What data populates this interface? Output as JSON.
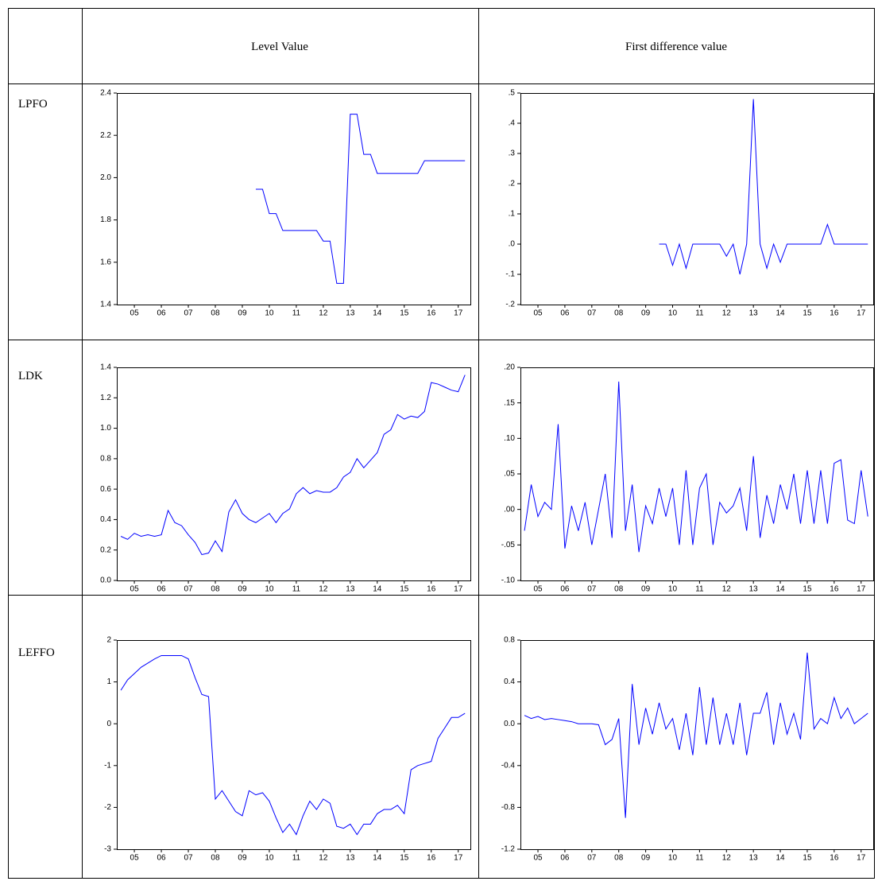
{
  "table": {
    "headers": [
      "Level Value",
      "First difference value"
    ],
    "row_labels": [
      "LPFO",
      "LDK",
      "LEFFO"
    ]
  },
  "chart_data": [
    {
      "type": "line",
      "color": "#0000ff",
      "x": [
        5,
        5.25,
        5.5,
        5.75,
        6,
        6.25,
        6.5,
        6.75,
        7,
        7.25,
        7.5,
        7.75,
        8,
        8.25,
        8.5,
        8.75,
        9,
        9.25,
        9.5,
        9.75,
        10,
        10.25,
        10.5,
        10.75,
        11,
        11.25,
        11.5,
        11.75,
        12,
        12.25,
        12.5,
        12.75,
        13,
        13.25,
        13.5,
        13.75,
        14,
        14.25,
        14.5,
        14.75,
        15,
        15.25,
        15.5,
        15.75,
        16,
        16.25,
        16.5,
        16.75,
        17,
        17.25,
        17.5,
        17.75
      ],
      "values": [
        null,
        null,
        null,
        null,
        null,
        null,
        null,
        null,
        null,
        null,
        null,
        null,
        null,
        null,
        null,
        null,
        null,
        null,
        null,
        null,
        1.945,
        1.945,
        1.83,
        1.83,
        1.75,
        1.75,
        1.75,
        1.75,
        1.75,
        1.75,
        1.7,
        1.7,
        1.5,
        1.5,
        2.3,
        2.3,
        2.11,
        2.11,
        2.02,
        2.02,
        2.02,
        2.02,
        2.02,
        2.02,
        2.02,
        2.08,
        2.08,
        2.08,
        2.08,
        2.08,
        2.08,
        2.08
      ],
      "xlim": [
        4.85,
        17.95
      ],
      "ylim": [
        1.4,
        2.4
      ],
      "yticks": [
        1.4,
        1.6,
        1.8,
        {
          "value": 2,
          "label": "2.0"
        },
        2.2,
        2.4
      ],
      "xticks": [
        {
          "value": 5.5,
          "label": "05"
        },
        {
          "value": 6.5,
          "label": "06"
        },
        {
          "value": 7.5,
          "label": "07"
        },
        {
          "value": 8.5,
          "label": "08"
        },
        {
          "value": 9.5,
          "label": "09"
        },
        {
          "value": 10.5,
          "label": "10"
        },
        {
          "value": 11.5,
          "label": "11"
        },
        {
          "value": 12.5,
          "label": "12"
        },
        {
          "value": 13.5,
          "label": "13"
        },
        {
          "value": 14.5,
          "label": "14"
        },
        {
          "value": 15.5,
          "label": "15"
        },
        {
          "value": 16.5,
          "label": "16"
        },
        {
          "value": 17.5,
          "label": "17"
        }
      ]
    },
    {
      "type": "line",
      "color": "#0000ff",
      "x": [
        5,
        5.25,
        5.5,
        5.75,
        6,
        6.25,
        6.5,
        6.75,
        7,
        7.25,
        7.5,
        7.75,
        8,
        8.25,
        8.5,
        8.75,
        9,
        9.25,
        9.5,
        9.75,
        10,
        10.25,
        10.5,
        10.75,
        11,
        11.25,
        11.5,
        11.75,
        12,
        12.25,
        12.5,
        12.75,
        13,
        13.25,
        13.5,
        13.75,
        14,
        14.25,
        14.5,
        14.75,
        15,
        15.25,
        15.5,
        15.75,
        16,
        16.25,
        16.5,
        16.75,
        17,
        17.25,
        17.5,
        17.75
      ],
      "values": [
        null,
        null,
        null,
        null,
        null,
        null,
        null,
        null,
        null,
        null,
        null,
        null,
        null,
        null,
        null,
        null,
        null,
        null,
        null,
        null,
        0,
        0,
        -0.07,
        0,
        -0.08,
        0,
        0,
        0,
        0,
        0,
        -0.04,
        0,
        -0.1,
        0,
        0.48,
        0,
        -0.08,
        0,
        -0.06,
        0,
        0,
        0,
        0,
        0,
        0,
        0.065,
        0,
        0,
        0,
        0,
        0,
        0
      ],
      "xlim": [
        4.85,
        17.95
      ],
      "ylim": [
        -0.2,
        0.5
      ],
      "yticks": [
        {
          "value": -0.2,
          "label": "-.2"
        },
        {
          "value": -0.1,
          "label": "-.1"
        },
        {
          "value": 0,
          "label": ".0"
        },
        {
          "value": 0.1,
          "label": ".1"
        },
        {
          "value": 0.2,
          "label": ".2"
        },
        {
          "value": 0.3,
          "label": ".3"
        },
        {
          "value": 0.4,
          "label": ".4"
        },
        {
          "value": 0.5,
          "label": ".5"
        }
      ],
      "xticks": [
        {
          "value": 5.5,
          "label": "05"
        },
        {
          "value": 6.5,
          "label": "06"
        },
        {
          "value": 7.5,
          "label": "07"
        },
        {
          "value": 8.5,
          "label": "08"
        },
        {
          "value": 9.5,
          "label": "09"
        },
        {
          "value": 10.5,
          "label": "10"
        },
        {
          "value": 11.5,
          "label": "11"
        },
        {
          "value": 12.5,
          "label": "12"
        },
        {
          "value": 13.5,
          "label": "13"
        },
        {
          "value": 14.5,
          "label": "14"
        },
        {
          "value": 15.5,
          "label": "15"
        },
        {
          "value": 16.5,
          "label": "16"
        },
        {
          "value": 17.5,
          "label": "17"
        }
      ]
    },
    {
      "type": "line",
      "color": "#0000ff",
      "x": [
        5,
        5.25,
        5.5,
        5.75,
        6,
        6.25,
        6.5,
        6.75,
        7,
        7.25,
        7.5,
        7.75,
        8,
        8.25,
        8.5,
        8.75,
        9,
        9.25,
        9.5,
        9.75,
        10,
        10.25,
        10.5,
        10.75,
        11,
        11.25,
        11.5,
        11.75,
        12,
        12.25,
        12.5,
        12.75,
        13,
        13.25,
        13.5,
        13.75,
        14,
        14.25,
        14.5,
        14.75,
        15,
        15.25,
        15.5,
        15.75,
        16,
        16.25,
        16.5,
        16.75,
        17,
        17.25,
        17.5,
        17.75
      ],
      "values": [
        0.29,
        0.27,
        0.31,
        0.29,
        0.3,
        0.29,
        0.3,
        0.46,
        0.38,
        0.36,
        0.3,
        0.25,
        0.17,
        0.18,
        0.26,
        0.19,
        0.45,
        0.53,
        0.44,
        0.4,
        0.38,
        0.41,
        0.44,
        0.38,
        0.44,
        0.47,
        0.57,
        0.61,
        0.57,
        0.59,
        0.58,
        0.58,
        0.61,
        0.68,
        0.71,
        0.8,
        0.74,
        0.79,
        0.84,
        0.96,
        0.99,
        1.09,
        1.06,
        1.08,
        1.07,
        1.11,
        1.3,
        1.29,
        1.27,
        1.25,
        1.24,
        1.35
      ],
      "xlim": [
        4.85,
        17.95
      ],
      "ylim": [
        0,
        1.4
      ],
      "yticks": [
        {
          "value": 0,
          "label": "0.0"
        },
        0.2,
        0.4,
        0.6,
        0.8,
        {
          "value": 1,
          "label": "1.0"
        },
        1.2,
        1.4
      ],
      "xticks": [
        {
          "value": 5.5,
          "label": "05"
        },
        {
          "value": 6.5,
          "label": "06"
        },
        {
          "value": 7.5,
          "label": "07"
        },
        {
          "value": 8.5,
          "label": "08"
        },
        {
          "value": 9.5,
          "label": "09"
        },
        {
          "value": 10.5,
          "label": "10"
        },
        {
          "value": 11.5,
          "label": "11"
        },
        {
          "value": 12.5,
          "label": "12"
        },
        {
          "value": 13.5,
          "label": "13"
        },
        {
          "value": 14.5,
          "label": "14"
        },
        {
          "value": 15.5,
          "label": "15"
        },
        {
          "value": 16.5,
          "label": "16"
        },
        {
          "value": 17.5,
          "label": "17"
        }
      ]
    },
    {
      "type": "line",
      "color": "#0000ff",
      "x": [
        5,
        5.25,
        5.5,
        5.75,
        6,
        6.25,
        6.5,
        6.75,
        7,
        7.25,
        7.5,
        7.75,
        8,
        8.25,
        8.5,
        8.75,
        9,
        9.25,
        9.5,
        9.75,
        10,
        10.25,
        10.5,
        10.75,
        11,
        11.25,
        11.5,
        11.75,
        12,
        12.25,
        12.5,
        12.75,
        13,
        13.25,
        13.5,
        13.75,
        14,
        14.25,
        14.5,
        14.75,
        15,
        15.25,
        15.5,
        15.75,
        16,
        16.25,
        16.5,
        16.75,
        17,
        17.25,
        17.5,
        17.75
      ],
      "values": [
        -0.03,
        0.035,
        -0.01,
        0.01,
        0,
        0.12,
        -0.055,
        0.005,
        -0.03,
        0.01,
        -0.05,
        0,
        0.05,
        -0.04,
        0.18,
        -0.03,
        0.035,
        -0.06,
        0.005,
        -0.02,
        0.03,
        -0.01,
        0.03,
        -0.05,
        0.055,
        -0.05,
        0.03,
        0.05,
        -0.05,
        0.01,
        -0.005,
        0.005,
        0.03,
        -0.03,
        0.075,
        -0.04,
        0.02,
        -0.02,
        0.035,
        0,
        0.05,
        -0.02,
        0.055,
        -0.02,
        0.055,
        -0.02,
        0.065,
        0.07,
        -0.015,
        -0.02,
        0.055,
        -0.01
      ],
      "xlim": [
        4.85,
        17.95
      ],
      "ylim": [
        -0.1,
        0.2
      ],
      "yticks": [
        {
          "value": -0.1,
          "label": "-.10"
        },
        {
          "value": -0.05,
          "label": "-.05"
        },
        {
          "value": 0,
          "label": ".00"
        },
        {
          "value": 0.05,
          "label": ".05"
        },
        {
          "value": 0.1,
          "label": ".10"
        },
        {
          "value": 0.15,
          "label": ".15"
        },
        {
          "value": 0.2,
          "label": ".20"
        }
      ],
      "xticks": [
        {
          "value": 5.5,
          "label": "05"
        },
        {
          "value": 6.5,
          "label": "06"
        },
        {
          "value": 7.5,
          "label": "07"
        },
        {
          "value": 8.5,
          "label": "08"
        },
        {
          "value": 9.5,
          "label": "09"
        },
        {
          "value": 10.5,
          "label": "10"
        },
        {
          "value": 11.5,
          "label": "11"
        },
        {
          "value": 12.5,
          "label": "12"
        },
        {
          "value": 13.5,
          "label": "13"
        },
        {
          "value": 14.5,
          "label": "14"
        },
        {
          "value": 15.5,
          "label": "15"
        },
        {
          "value": 16.5,
          "label": "16"
        },
        {
          "value": 17.5,
          "label": "17"
        }
      ]
    },
    {
      "type": "line",
      "color": "#0000ff",
      "x": [
        5,
        5.25,
        5.5,
        5.75,
        6,
        6.25,
        6.5,
        6.75,
        7,
        7.25,
        7.5,
        7.75,
        8,
        8.25,
        8.5,
        8.75,
        9,
        9.25,
        9.5,
        9.75,
        10,
        10.25,
        10.5,
        10.75,
        11,
        11.25,
        11.5,
        11.75,
        12,
        12.25,
        12.5,
        12.75,
        13,
        13.25,
        13.5,
        13.75,
        14,
        14.25,
        14.5,
        14.75,
        15,
        15.25,
        15.5,
        15.75,
        16,
        16.25,
        16.5,
        16.75,
        17,
        17.25,
        17.5,
        17.75
      ],
      "values": [
        0.8,
        1.05,
        1.2,
        1.35,
        1.45,
        1.55,
        1.63,
        1.63,
        1.63,
        1.63,
        1.55,
        1.1,
        0.7,
        0.65,
        -1.8,
        -1.6,
        -1.85,
        -2.1,
        -2.2,
        -1.6,
        -1.7,
        -1.65,
        -1.85,
        -2.25,
        -2.6,
        -2.4,
        -2.65,
        -2.2,
        -1.85,
        -2.05,
        -1.8,
        -1.9,
        -2.45,
        -2.5,
        -2.4,
        -2.65,
        -2.4,
        -2.4,
        -2.15,
        -2.05,
        -2.05,
        -1.95,
        -2.15,
        -1.1,
        -1,
        -0.95,
        -0.9,
        -0.35,
        -0.1,
        0.15,
        0.15,
        0.25
      ],
      "xlim": [
        4.85,
        17.95
      ],
      "ylim": [
        -3,
        2
      ],
      "yticks": [
        -3,
        -2,
        -1,
        0,
        1,
        2
      ],
      "xticks": [
        {
          "value": 5.5,
          "label": "05"
        },
        {
          "value": 6.5,
          "label": "06"
        },
        {
          "value": 7.5,
          "label": "07"
        },
        {
          "value": 8.5,
          "label": "08"
        },
        {
          "value": 9.5,
          "label": "09"
        },
        {
          "value": 10.5,
          "label": "10"
        },
        {
          "value": 11.5,
          "label": "11"
        },
        {
          "value": 12.5,
          "label": "12"
        },
        {
          "value": 13.5,
          "label": "13"
        },
        {
          "value": 14.5,
          "label": "14"
        },
        {
          "value": 15.5,
          "label": "15"
        },
        {
          "value": 16.5,
          "label": "16"
        },
        {
          "value": 17.5,
          "label": "17"
        }
      ]
    },
    {
      "type": "line",
      "color": "#0000ff",
      "x": [
        5,
        5.25,
        5.5,
        5.75,
        6,
        6.25,
        6.5,
        6.75,
        7,
        7.25,
        7.5,
        7.75,
        8,
        8.25,
        8.5,
        8.75,
        9,
        9.25,
        9.5,
        9.75,
        10,
        10.25,
        10.5,
        10.75,
        11,
        11.25,
        11.5,
        11.75,
        12,
        12.25,
        12.5,
        12.75,
        13,
        13.25,
        13.5,
        13.75,
        14,
        14.25,
        14.5,
        14.75,
        15,
        15.25,
        15.5,
        15.75,
        16,
        16.25,
        16.5,
        16.75,
        17,
        17.25,
        17.5,
        17.75
      ],
      "values": [
        0.08,
        0.05,
        0.07,
        0.04,
        0.05,
        0.04,
        0.03,
        0.02,
        0,
        0,
        0,
        -0.01,
        -0.2,
        -0.15,
        0.05,
        -0.9,
        0.38,
        -0.2,
        0.15,
        -0.1,
        0.2,
        -0.05,
        0.05,
        -0.25,
        0.1,
        -0.3,
        0.35,
        -0.2,
        0.25,
        -0.2,
        0.1,
        -0.2,
        0.2,
        -0.3,
        0.1,
        0.1,
        0.3,
        -0.2,
        0.2,
        -0.1,
        0.1,
        -0.15,
        0.68,
        -0.05,
        0.05,
        0,
        0.25,
        0.05,
        0.15,
        0,
        0.05,
        0.1
      ],
      "xlim": [
        4.85,
        17.95
      ],
      "ylim": [
        -1.2,
        0.8
      ],
      "yticks": [
        -1.2,
        -0.8,
        -0.4,
        {
          "value": 0,
          "label": "0.0"
        },
        0.4,
        0.8
      ],
      "xticks": [
        {
          "value": 5.5,
          "label": "05"
        },
        {
          "value": 6.5,
          "label": "06"
        },
        {
          "value": 7.5,
          "label": "07"
        },
        {
          "value": 8.5,
          "label": "08"
        },
        {
          "value": 9.5,
          "label": "09"
        },
        {
          "value": 10.5,
          "label": "10"
        },
        {
          "value": 11.5,
          "label": "11"
        },
        {
          "value": 12.5,
          "label": "12"
        },
        {
          "value": 13.5,
          "label": "13"
        },
        {
          "value": 14.5,
          "label": "14"
        },
        {
          "value": 15.5,
          "label": "15"
        },
        {
          "value": 16.5,
          "label": "16"
        },
        {
          "value": 17.5,
          "label": "17"
        }
      ]
    }
  ]
}
